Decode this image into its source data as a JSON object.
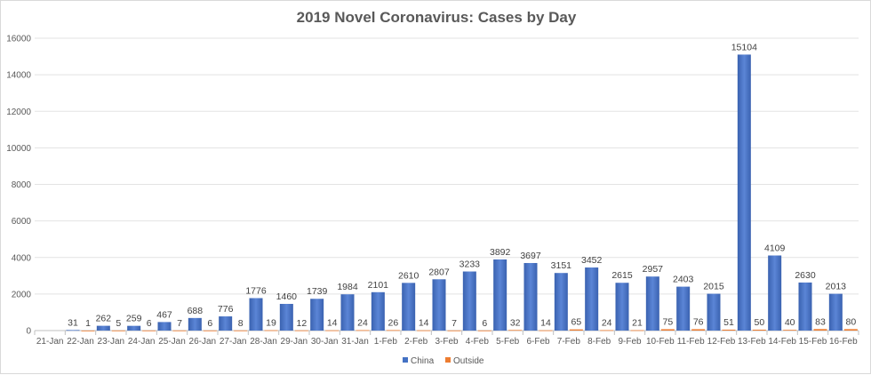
{
  "chart_data": {
    "type": "bar",
    "title": "2019 Novel Coronavirus: Cases by Day",
    "xlabel": "",
    "ylabel": "",
    "ylim": [
      0,
      16000
    ],
    "yticks": [
      0,
      2000,
      4000,
      6000,
      8000,
      10000,
      12000,
      14000,
      16000
    ],
    "grid": true,
    "legend": "bottom",
    "categories": [
      "21-Jan",
      "22-Jan",
      "23-Jan",
      "24-Jan",
      "25-Jan",
      "26-Jan",
      "27-Jan",
      "28-Jan",
      "29-Jan",
      "30-Jan",
      "31-Jan",
      "1-Feb",
      "2-Feb",
      "3-Feb",
      "4-Feb",
      "5-Feb",
      "6-Feb",
      "7-Feb",
      "8-Feb",
      "9-Feb",
      "10-Feb",
      "11-Feb",
      "12-Feb",
      "13-Feb",
      "14-Feb",
      "15-Feb",
      "16-Feb"
    ],
    "series": [
      {
        "name": "China",
        "color": "#4472C4",
        "values": [
          null,
          31,
          262,
          259,
          467,
          688,
          776,
          1776,
          1460,
          1739,
          1984,
          2101,
          2610,
          2807,
          3233,
          3892,
          3697,
          3151,
          3452,
          2615,
          2957,
          2403,
          2015,
          15104,
          4109,
          2630,
          2013
        ]
      },
      {
        "name": "Outside",
        "color": "#ED7D31",
        "values": [
          null,
          1,
          5,
          6,
          7,
          6,
          8,
          19,
          12,
          14,
          24,
          26,
          14,
          7,
          6,
          32,
          14,
          65,
          24,
          21,
          75,
          76,
          51,
          50,
          40,
          83,
          80
        ]
      }
    ]
  }
}
